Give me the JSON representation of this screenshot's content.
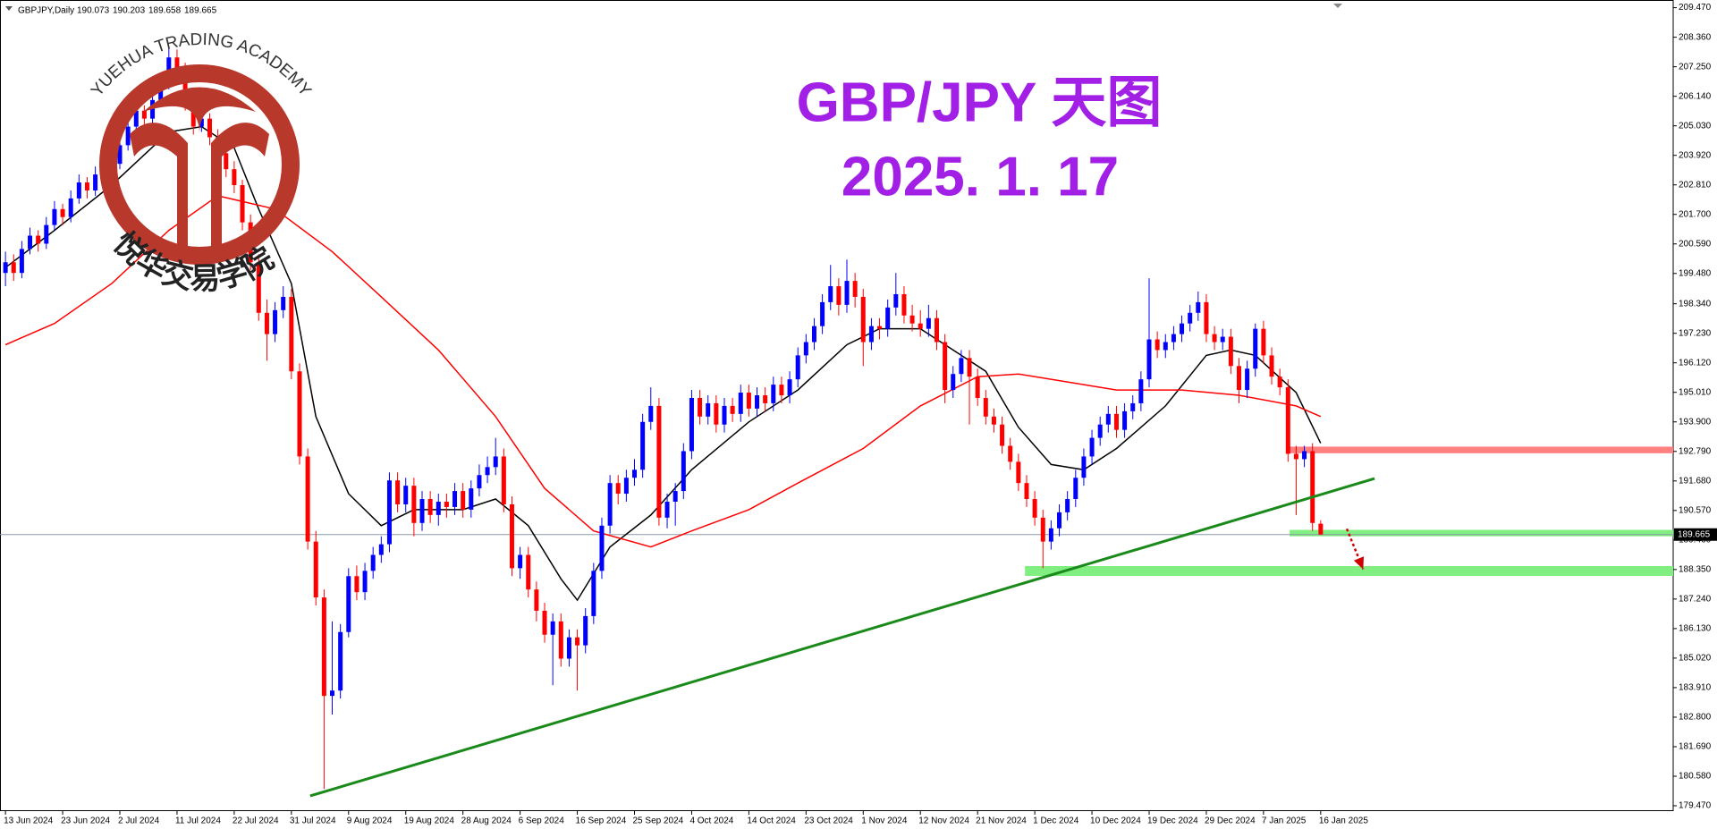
{
  "chart_data": {
    "type": "candlestick",
    "symbol": "GBPJPY,Daily",
    "title": "GBP/JPY 天图",
    "subtitle": "2025. 1. 17",
    "logo_text": "YUEHUA TRADING ACADEMY",
    "logo_text_cn": "悦华交易学院",
    "up_color": "#0000ff",
    "down_color": "#ff0000",
    "xlim": [
      -0.67,
      204.15
    ],
    "ylim": [
      179.47,
      209.47
    ],
    "xticks": [
      {
        "value": 0,
        "label": "13 Jun 2024"
      },
      {
        "value": 7,
        "label": "23 Jun 2024"
      },
      {
        "value": 14,
        "label": "2 Jul 2024"
      },
      {
        "value": 21,
        "label": "11 Jul 2024"
      },
      {
        "value": 28,
        "label": "22 Jul 2024"
      },
      {
        "value": 35,
        "label": "31 Jul 2024"
      },
      {
        "value": 42,
        "label": "9 Aug 2024"
      },
      {
        "value": 49,
        "label": "19 Aug 2024"
      },
      {
        "value": 56,
        "label": "28 Aug 2024"
      },
      {
        "value": 63,
        "label": "6 Sep 2024"
      },
      {
        "value": 70,
        "label": "16 Sep 2024"
      },
      {
        "value": 77,
        "label": "25 Sep 2024"
      },
      {
        "value": 84,
        "label": "4 Oct 2024"
      },
      {
        "value": 91,
        "label": "14 Oct 2024"
      },
      {
        "value": 98,
        "label": "23 Oct 2024"
      },
      {
        "value": 105,
        "label": "1 Nov 2024"
      },
      {
        "value": 112,
        "label": "12 Nov 2024"
      },
      {
        "value": 119,
        "label": "21 Nov 2024"
      },
      {
        "value": 126,
        "label": "1 Dec 2024"
      },
      {
        "value": 133,
        "label": "10 Dec 2024"
      },
      {
        "value": 140,
        "label": "19 Dec 2024"
      },
      {
        "value": 147,
        "label": "29 Dec 2024"
      },
      {
        "value": 154,
        "label": "7 Jan 2025"
      },
      {
        "value": 161,
        "label": "16 Jan 2025"
      }
    ],
    "yticks": [
      {
        "value": 209.47,
        "label": "209.470"
      },
      {
        "value": 208.36,
        "label": "208.360"
      },
      {
        "value": 207.25,
        "label": "207.250"
      },
      {
        "value": 206.14,
        "label": "206.140"
      },
      {
        "value": 205.03,
        "label": "205.030"
      },
      {
        "value": 203.92,
        "label": "203.920"
      },
      {
        "value": 202.81,
        "label": "202.810"
      },
      {
        "value": 201.7,
        "label": "201.700"
      },
      {
        "value": 200.59,
        "label": "200.590"
      },
      {
        "value": 199.48,
        "label": "199.480"
      },
      {
        "value": 198.34,
        "label": "198.340"
      },
      {
        "value": 197.23,
        "label": "197.230"
      },
      {
        "value": 196.12,
        "label": "196.120"
      },
      {
        "value": 195.01,
        "label": "195.010"
      },
      {
        "value": 193.9,
        "label": "193.900"
      },
      {
        "value": 192.79,
        "label": "192.790"
      },
      {
        "value": 191.68,
        "label": "191.680"
      },
      {
        "value": 190.57,
        "label": "190.570"
      },
      {
        "value": 189.46,
        "label": "189.460"
      },
      {
        "value": 188.35,
        "label": "188.350"
      },
      {
        "value": 187.24,
        "label": "187.240"
      },
      {
        "value": 186.13,
        "label": "186.130"
      },
      {
        "value": 185.02,
        "label": "185.020"
      },
      {
        "value": 183.91,
        "label": "183.910"
      },
      {
        "value": 182.8,
        "label": "182.800"
      },
      {
        "value": 181.69,
        "label": "181.690"
      },
      {
        "value": 180.58,
        "label": "180.580"
      },
      {
        "value": 179.47,
        "label": "179.470"
      }
    ],
    "candles": [
      [
        199.5,
        200.3,
        199.0,
        199.9
      ],
      [
        199.9,
        200.2,
        199.2,
        199.5
      ],
      [
        199.5,
        200.7,
        199.3,
        200.4
      ],
      [
        200.4,
        201.2,
        200.2,
        200.9
      ],
      [
        200.9,
        201.1,
        200.3,
        200.6
      ],
      [
        200.6,
        201.6,
        200.4,
        201.3
      ],
      [
        201.3,
        202.2,
        201.1,
        201.9
      ],
      [
        201.9,
        202.1,
        201.3,
        201.6
      ],
      [
        201.6,
        202.6,
        201.4,
        202.3
      ],
      [
        202.3,
        203.2,
        202.1,
        202.9
      ],
      [
        202.9,
        203.1,
        202.3,
        202.6
      ],
      [
        202.6,
        203.5,
        202.4,
        203.2
      ],
      [
        203.2,
        203.4,
        202.7,
        203.0
      ],
      [
        203.0,
        203.9,
        202.8,
        203.6
      ],
      [
        203.6,
        204.6,
        203.4,
        204.3
      ],
      [
        204.3,
        205.3,
        204.1,
        205.0
      ],
      [
        205.0,
        205.9,
        204.8,
        205.6
      ],
      [
        205.6,
        205.8,
        205.0,
        205.3
      ],
      [
        205.3,
        206.3,
        205.1,
        206.0
      ],
      [
        206.0,
        206.9,
        205.8,
        206.6
      ],
      [
        206.6,
        208.0,
        206.4,
        207.6
      ],
      [
        207.6,
        207.9,
        206.9,
        207.2
      ],
      [
        207.2,
        207.4,
        205.6,
        205.9
      ],
      [
        205.9,
        206.2,
        204.7,
        205.0
      ],
      [
        205.0,
        205.7,
        204.8,
        205.3
      ],
      [
        205.3,
        205.5,
        204.3,
        204.6
      ],
      [
        204.6,
        204.9,
        203.7,
        204.0
      ],
      [
        204.0,
        204.3,
        203.1,
        203.4
      ],
      [
        203.4,
        203.7,
        202.5,
        202.8
      ],
      [
        202.8,
        203.0,
        201.1,
        201.4
      ],
      [
        201.4,
        201.7,
        199.6,
        199.9
      ],
      [
        199.9,
        200.2,
        197.7,
        198.0
      ],
      [
        198.0,
        198.5,
        196.2,
        197.2
      ],
      [
        197.2,
        198.4,
        196.9,
        198.1
      ],
      [
        198.1,
        199.0,
        197.8,
        198.6
      ],
      [
        198.6,
        198.9,
        195.5,
        195.8
      ],
      [
        195.8,
        196.1,
        192.3,
        192.6
      ],
      [
        192.6,
        192.9,
        189.1,
        189.4
      ],
      [
        189.4,
        189.8,
        187.0,
        187.3
      ],
      [
        187.3,
        187.6,
        180.1,
        183.6
      ],
      [
        183.6,
        186.4,
        182.9,
        183.8
      ],
      [
        183.8,
        186.3,
        183.5,
        186.0
      ],
      [
        186.0,
        188.4,
        185.8,
        188.1
      ],
      [
        188.1,
        188.5,
        187.2,
        187.5
      ],
      [
        187.5,
        188.6,
        187.2,
        188.3
      ],
      [
        188.3,
        189.2,
        188.0,
        188.9
      ],
      [
        188.9,
        189.6,
        188.6,
        189.3
      ],
      [
        189.3,
        192.0,
        189.0,
        191.7
      ],
      [
        191.7,
        192.0,
        190.5,
        190.8
      ],
      [
        190.8,
        191.8,
        190.5,
        191.5
      ],
      [
        191.5,
        191.8,
        189.6,
        190.1
      ],
      [
        190.1,
        191.3,
        189.8,
        191.0
      ],
      [
        191.0,
        191.3,
        190.1,
        190.4
      ],
      [
        190.4,
        191.2,
        190.0,
        190.9
      ],
      [
        190.9,
        191.2,
        190.3,
        190.7
      ],
      [
        190.7,
        191.6,
        190.4,
        191.3
      ],
      [
        191.3,
        191.6,
        190.3,
        190.6
      ],
      [
        190.6,
        191.7,
        190.3,
        191.4
      ],
      [
        191.4,
        192.3,
        191.1,
        191.9
      ],
      [
        191.9,
        192.6,
        191.6,
        192.2
      ],
      [
        192.2,
        193.3,
        191.9,
        192.6
      ],
      [
        192.6,
        192.9,
        190.5,
        190.8
      ],
      [
        190.8,
        191.1,
        188.1,
        188.4
      ],
      [
        188.4,
        189.2,
        188.0,
        188.9
      ],
      [
        188.9,
        189.2,
        187.3,
        187.6
      ],
      [
        187.6,
        187.9,
        186.4,
        186.8
      ],
      [
        186.8,
        187.1,
        185.6,
        185.9
      ],
      [
        185.9,
        186.7,
        184.0,
        186.4
      ],
      [
        186.4,
        186.7,
        184.7,
        185.0
      ],
      [
        185.0,
        186.1,
        184.7,
        185.8
      ],
      [
        185.8,
        186.1,
        183.8,
        185.5
      ],
      [
        185.5,
        186.9,
        185.2,
        186.6
      ],
      [
        186.6,
        188.6,
        186.3,
        188.3
      ],
      [
        188.3,
        190.3,
        188.0,
        190.0
      ],
      [
        190.0,
        191.9,
        189.7,
        191.6
      ],
      [
        191.6,
        191.9,
        190.8,
        191.2
      ],
      [
        191.2,
        192.1,
        190.9,
        191.8
      ],
      [
        191.8,
        192.5,
        191.5,
        192.1
      ],
      [
        192.1,
        194.2,
        191.8,
        193.9
      ],
      [
        193.9,
        195.2,
        193.6,
        194.5
      ],
      [
        194.5,
        194.8,
        190.0,
        190.3
      ],
      [
        190.3,
        191.2,
        189.9,
        190.9
      ],
      [
        190.9,
        191.6,
        190.0,
        191.3
      ],
      [
        191.3,
        193.1,
        191.0,
        192.8
      ],
      [
        192.8,
        195.1,
        192.5,
        194.8
      ],
      [
        194.8,
        195.1,
        193.8,
        194.1
      ],
      [
        194.1,
        194.9,
        193.8,
        194.6
      ],
      [
        194.6,
        194.9,
        193.5,
        193.8
      ],
      [
        193.8,
        194.8,
        193.5,
        194.5
      ],
      [
        194.5,
        194.8,
        193.9,
        194.2
      ],
      [
        194.2,
        195.3,
        193.9,
        195.0
      ],
      [
        195.0,
        195.3,
        194.1,
        194.4
      ],
      [
        194.4,
        195.2,
        194.1,
        194.9
      ],
      [
        194.9,
        195.2,
        194.3,
        194.6
      ],
      [
        194.6,
        195.6,
        194.3,
        195.3
      ],
      [
        195.3,
        195.6,
        194.6,
        194.9
      ],
      [
        194.9,
        195.8,
        194.6,
        195.5
      ],
      [
        195.5,
        196.7,
        195.2,
        196.4
      ],
      [
        196.4,
        197.2,
        196.1,
        196.9
      ],
      [
        196.9,
        197.8,
        196.6,
        197.5
      ],
      [
        197.5,
        198.7,
        197.2,
        198.4
      ],
      [
        198.4,
        199.8,
        198.1,
        199.0
      ],
      [
        199.0,
        199.3,
        197.9,
        198.3
      ],
      [
        198.3,
        200.0,
        198.0,
        199.2
      ],
      [
        199.2,
        199.5,
        198.2,
        198.6
      ],
      [
        198.6,
        198.9,
        196.0,
        196.9
      ],
      [
        196.9,
        197.8,
        196.6,
        197.5
      ],
      [
        197.5,
        197.8,
        197.0,
        197.4
      ],
      [
        197.4,
        198.5,
        197.1,
        198.2
      ],
      [
        198.2,
        199.5,
        197.9,
        198.7
      ],
      [
        198.7,
        199.0,
        197.6,
        197.9
      ],
      [
        197.9,
        198.3,
        197.3,
        197.6
      ],
      [
        197.6,
        198.1,
        197.1,
        197.4
      ],
      [
        197.4,
        198.3,
        197.1,
        197.8
      ],
      [
        197.8,
        198.1,
        196.6,
        196.9
      ],
      [
        196.9,
        197.2,
        194.6,
        195.1
      ],
      [
        195.1,
        196.0,
        194.8,
        195.7
      ],
      [
        195.7,
        196.6,
        195.4,
        196.3
      ],
      [
        196.3,
        196.6,
        193.8,
        195.6
      ],
      [
        195.6,
        195.9,
        194.5,
        194.8
      ],
      [
        194.8,
        195.1,
        193.8,
        194.1
      ],
      [
        194.1,
        194.4,
        193.5,
        193.8
      ],
      [
        193.8,
        194.1,
        192.7,
        193.0
      ],
      [
        193.0,
        193.3,
        192.1,
        192.4
      ],
      [
        192.4,
        192.7,
        191.3,
        191.6
      ],
      [
        191.6,
        191.9,
        190.7,
        191.0
      ],
      [
        191.0,
        191.3,
        190.0,
        190.3
      ],
      [
        190.3,
        190.6,
        188.4,
        189.4
      ],
      [
        189.4,
        190.2,
        189.1,
        189.9
      ],
      [
        189.9,
        190.8,
        189.6,
        190.5
      ],
      [
        190.5,
        191.3,
        190.2,
        191.0
      ],
      [
        191.0,
        192.1,
        190.7,
        191.8
      ],
      [
        191.8,
        192.9,
        191.5,
        192.6
      ],
      [
        192.6,
        193.6,
        192.3,
        193.3
      ],
      [
        193.3,
        194.1,
        193.0,
        193.8
      ],
      [
        193.8,
        194.5,
        193.5,
        194.2
      ],
      [
        194.2,
        194.5,
        193.3,
        193.6
      ],
      [
        193.6,
        194.6,
        193.3,
        194.3
      ],
      [
        194.3,
        194.9,
        194.0,
        194.6
      ],
      [
        194.6,
        195.8,
        194.3,
        195.5
      ],
      [
        195.5,
        199.3,
        195.2,
        197.0
      ],
      [
        197.0,
        197.3,
        196.3,
        196.6
      ],
      [
        196.6,
        197.2,
        196.3,
        196.9
      ],
      [
        196.9,
        197.5,
        196.6,
        197.2
      ],
      [
        197.2,
        197.9,
        196.9,
        197.6
      ],
      [
        197.6,
        198.3,
        197.3,
        198.0
      ],
      [
        198.0,
        198.8,
        197.7,
        198.4
      ],
      [
        198.4,
        198.7,
        196.9,
        197.2
      ],
      [
        197.2,
        197.5,
        196.6,
        196.9
      ],
      [
        196.9,
        197.4,
        196.6,
        197.1
      ],
      [
        197.1,
        197.4,
        195.7,
        196.0
      ],
      [
        196.0,
        196.3,
        194.6,
        195.1
      ],
      [
        195.1,
        196.2,
        194.8,
        195.9
      ],
      [
        195.9,
        197.6,
        195.6,
        197.4
      ],
      [
        197.4,
        197.7,
        196.1,
        196.4
      ],
      [
        196.4,
        196.7,
        195.3,
        195.6
      ],
      [
        195.6,
        195.9,
        194.9,
        195.2
      ],
      [
        195.2,
        195.5,
        192.4,
        192.7
      ],
      [
        192.7,
        193.0,
        190.4,
        192.5
      ],
      [
        192.5,
        193.0,
        192.2,
        192.8
      ],
      [
        192.8,
        193.1,
        189.8,
        190.1
      ],
      [
        190.073,
        190.203,
        189.658,
        189.665
      ]
    ],
    "ma": [
      {
        "color": "#000000",
        "x": [
          0,
          6,
          13,
          20,
          24,
          28,
          31,
          35,
          38,
          42,
          46,
          50,
          56,
          60,
          64,
          68,
          70,
          74,
          79,
          84,
          91,
          97,
          103,
          107,
          112,
          116,
          120,
          124,
          128,
          132,
          136,
          142,
          147,
          150,
          153,
          158,
          161
        ],
        "values": [
          199.7,
          201.1,
          202.8,
          204.8,
          205.0,
          204.2,
          201.9,
          199.1,
          194.1,
          191.2,
          190.0,
          190.6,
          190.6,
          191.0,
          190.0,
          188.0,
          187.2,
          189.2,
          190.4,
          192.1,
          193.9,
          195.1,
          196.8,
          197.4,
          197.4,
          196.6,
          195.8,
          193.7,
          192.3,
          192.1,
          192.9,
          194.5,
          196.4,
          196.6,
          196.4,
          195.0,
          193.1
        ]
      },
      {
        "color": "#ff0000",
        "x": [
          0,
          6,
          13,
          20,
          26,
          33,
          40,
          46,
          53,
          60,
          66,
          72,
          79,
          84,
          91,
          97,
          105,
          112,
          119,
          124,
          130,
          136,
          144,
          151,
          158,
          161
        ],
        "values": [
          196.8,
          197.6,
          199.1,
          201.1,
          202.4,
          201.9,
          200.3,
          198.6,
          196.6,
          194.1,
          191.4,
          189.8,
          189.2,
          189.8,
          190.6,
          191.6,
          192.9,
          194.5,
          195.6,
          195.7,
          195.4,
          195.1,
          195.1,
          194.9,
          194.5,
          194.1
        ]
      }
    ],
    "zones": [
      {
        "x": 157.2,
        "y": [
          192.97,
          192.72
        ],
        "color": "#ff8080"
      },
      {
        "x": 157.2,
        "y": [
          189.84,
          189.6
        ],
        "color": "#80ee80"
      },
      {
        "x": 124.8,
        "y": [
          188.48,
          188.11
        ],
        "color": "#80ee80"
      }
    ],
    "trendline": {
      "x": [
        37.3,
        167.6
      ],
      "y": [
        179.84,
        191.77
      ],
      "color": "#1a8a1a"
    },
    "arrow": {
      "x": [
        164.2,
        166.2
      ],
      "y": [
        189.88,
        188.36
      ],
      "color": "#d00000"
    }
  }
}
